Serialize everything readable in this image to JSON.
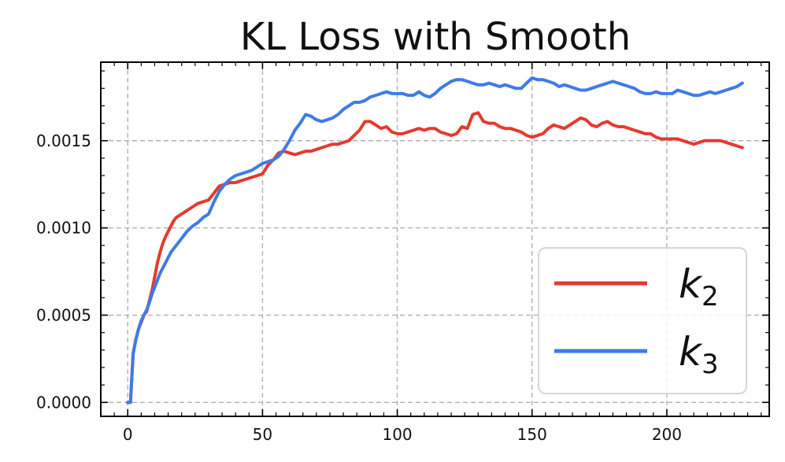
{
  "chart_data": {
    "type": "line",
    "title": "KL Loss with Smooth",
    "xlabel": "",
    "ylabel": "",
    "xlim": [
      -10,
      238
    ],
    "ylim": [
      -8e-05,
      0.00195
    ],
    "xticks": [
      0,
      50,
      100,
      150,
      200
    ],
    "xtick_labels": [
      "0",
      "50",
      "100",
      "150",
      "200"
    ],
    "yticks": [
      0.0,
      0.0005,
      0.001,
      0.0015
    ],
    "ytick_labels": [
      "0.0000",
      "0.0005",
      "0.0010",
      "0.0015"
    ],
    "grid": true,
    "legend_position": "lower-right",
    "series": [
      {
        "name": "k2",
        "label_base": "k",
        "label_sub": "2",
        "color": "#e53a30",
        "x": [
          0,
          1,
          2,
          3,
          4,
          5,
          6,
          7,
          8,
          9,
          10,
          11,
          12,
          13,
          14,
          15,
          16,
          17,
          18,
          19,
          20,
          22,
          24,
          26,
          28,
          30,
          32,
          34,
          36,
          38,
          40,
          42,
          44,
          46,
          48,
          50,
          52,
          54,
          56,
          58,
          60,
          62,
          64,
          66,
          68,
          70,
          72,
          74,
          76,
          78,
          80,
          82,
          84,
          86,
          88,
          90,
          92,
          94,
          96,
          98,
          100,
          102,
          104,
          106,
          108,
          110,
          112,
          114,
          116,
          118,
          120,
          122,
          124,
          126,
          128,
          130,
          132,
          134,
          136,
          138,
          140,
          142,
          144,
          146,
          148,
          150,
          152,
          154,
          156,
          158,
          160,
          162,
          164,
          166,
          168,
          170,
          172,
          174,
          176,
          178,
          180,
          182,
          184,
          186,
          188,
          190,
          192,
          194,
          196,
          198,
          200,
          202,
          204,
          206,
          208,
          210,
          212,
          214,
          216,
          218,
          220,
          222,
          224,
          226,
          228
        ],
        "values": [
          0.0,
          0.0,
          0.00028,
          0.00036,
          0.00042,
          0.00046,
          0.0005,
          0.00052,
          0.00058,
          0.00064,
          0.00072,
          0.0008,
          0.00086,
          0.00091,
          0.00095,
          0.00098,
          0.00101,
          0.00104,
          0.00106,
          0.00107,
          0.00108,
          0.0011,
          0.00112,
          0.00114,
          0.00115,
          0.00116,
          0.0012,
          0.00124,
          0.00125,
          0.00126,
          0.00126,
          0.00127,
          0.00128,
          0.00129,
          0.0013,
          0.00131,
          0.00136,
          0.00139,
          0.00143,
          0.00144,
          0.00143,
          0.00142,
          0.00143,
          0.00144,
          0.00144,
          0.00145,
          0.00146,
          0.00147,
          0.00148,
          0.00148,
          0.00149,
          0.0015,
          0.00153,
          0.00156,
          0.00161,
          0.00161,
          0.00159,
          0.00157,
          0.00158,
          0.00155,
          0.00154,
          0.00154,
          0.00155,
          0.00156,
          0.00157,
          0.00156,
          0.00157,
          0.00157,
          0.00155,
          0.00154,
          0.00153,
          0.00154,
          0.00158,
          0.00157,
          0.00165,
          0.00166,
          0.00161,
          0.0016,
          0.0016,
          0.00158,
          0.00157,
          0.00157,
          0.00156,
          0.00155,
          0.00153,
          0.00152,
          0.00153,
          0.00154,
          0.00157,
          0.00159,
          0.00158,
          0.00157,
          0.00159,
          0.00161,
          0.00163,
          0.00162,
          0.00159,
          0.00158,
          0.0016,
          0.00161,
          0.00159,
          0.00158,
          0.00158,
          0.00157,
          0.00156,
          0.00155,
          0.00154,
          0.00154,
          0.00152,
          0.00151,
          0.00151,
          0.00151,
          0.00151,
          0.0015,
          0.00149,
          0.00148,
          0.00149,
          0.0015,
          0.0015,
          0.0015,
          0.0015,
          0.00149,
          0.00148,
          0.00147,
          0.00146
        ]
      },
      {
        "name": "k3",
        "label_base": "k",
        "label_sub": "3",
        "color": "#3d7be8",
        "x": [
          0,
          1,
          2,
          3,
          4,
          5,
          6,
          7,
          8,
          9,
          10,
          11,
          12,
          13,
          14,
          15,
          16,
          17,
          18,
          19,
          20,
          22,
          24,
          26,
          28,
          30,
          32,
          34,
          36,
          38,
          40,
          42,
          44,
          46,
          48,
          50,
          52,
          54,
          56,
          58,
          60,
          62,
          64,
          66,
          68,
          70,
          72,
          74,
          76,
          78,
          80,
          82,
          84,
          86,
          88,
          90,
          92,
          94,
          96,
          98,
          100,
          102,
          104,
          106,
          108,
          110,
          112,
          114,
          116,
          118,
          120,
          122,
          124,
          126,
          128,
          130,
          132,
          134,
          136,
          138,
          140,
          142,
          144,
          146,
          148,
          150,
          152,
          154,
          156,
          158,
          160,
          162,
          164,
          166,
          168,
          170,
          172,
          174,
          176,
          178,
          180,
          182,
          184,
          186,
          188,
          190,
          192,
          194,
          196,
          198,
          200,
          202,
          204,
          206,
          208,
          210,
          212,
          214,
          216,
          218,
          220,
          222,
          224,
          226,
          228
        ],
        "values": [
          0.0,
          0.0,
          0.00028,
          0.00036,
          0.00042,
          0.00047,
          0.0005,
          0.00053,
          0.00057,
          0.00062,
          0.00066,
          0.0007,
          0.00074,
          0.00077,
          0.0008,
          0.00083,
          0.00086,
          0.00088,
          0.0009,
          0.00092,
          0.00094,
          0.00098,
          0.00101,
          0.00103,
          0.00106,
          0.00108,
          0.00115,
          0.00121,
          0.00125,
          0.00128,
          0.0013,
          0.00131,
          0.00132,
          0.00133,
          0.00135,
          0.00137,
          0.00138,
          0.00139,
          0.00141,
          0.00145,
          0.0015,
          0.00156,
          0.0016,
          0.00165,
          0.00164,
          0.00162,
          0.00161,
          0.00162,
          0.00163,
          0.00165,
          0.00168,
          0.0017,
          0.00172,
          0.00172,
          0.00173,
          0.00175,
          0.00176,
          0.00177,
          0.00178,
          0.00177,
          0.00177,
          0.00177,
          0.00176,
          0.00176,
          0.00178,
          0.00176,
          0.00175,
          0.00177,
          0.0018,
          0.00182,
          0.00184,
          0.00185,
          0.00185,
          0.00184,
          0.00183,
          0.00182,
          0.00182,
          0.00183,
          0.00182,
          0.00181,
          0.00182,
          0.00181,
          0.0018,
          0.0018,
          0.00183,
          0.00186,
          0.00185,
          0.00185,
          0.00184,
          0.00183,
          0.00181,
          0.00182,
          0.00181,
          0.0018,
          0.00179,
          0.00179,
          0.0018,
          0.00181,
          0.00182,
          0.00183,
          0.00184,
          0.00183,
          0.00182,
          0.00181,
          0.0018,
          0.00178,
          0.00177,
          0.00177,
          0.00178,
          0.00177,
          0.00177,
          0.00177,
          0.00179,
          0.00178,
          0.00177,
          0.00176,
          0.00176,
          0.00177,
          0.00178,
          0.00177,
          0.00178,
          0.00179,
          0.0018,
          0.00181,
          0.00183
        ]
      }
    ]
  }
}
